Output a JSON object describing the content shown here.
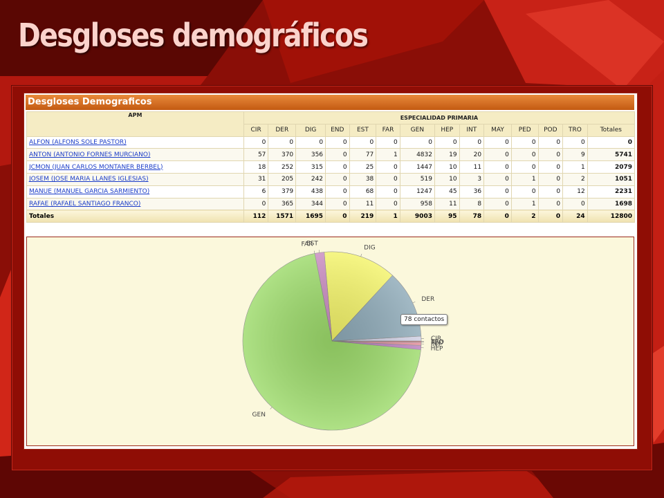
{
  "slide": {
    "title": "Desgloses demográficos"
  },
  "panel": {
    "title": "Desgloses Demograficos"
  },
  "table": {
    "row_header": "APM",
    "group_header": "ESPECIALIDAD PRIMARIA",
    "columns": [
      "CIR",
      "DER",
      "DIG",
      "END",
      "EST",
      "FAR",
      "GEN",
      "HEP",
      "INT",
      "MAY",
      "PED",
      "POD",
      "TRO",
      "Totales"
    ],
    "rows": [
      {
        "name": "ALFON (ALFONS SOLE PASTOR)",
        "values": [
          "0",
          "0",
          "0",
          "0",
          "0",
          "0",
          "0",
          "0",
          "0",
          "0",
          "0",
          "0",
          "0",
          "0"
        ]
      },
      {
        "name": "ANTON (ANTONIO FORNES MURCIANO)",
        "values": [
          "57",
          "370",
          "356",
          "0",
          "77",
          "1",
          "4832",
          "19",
          "20",
          "0",
          "0",
          "0",
          "9",
          "5741"
        ]
      },
      {
        "name": "JCMON (JUAN CARLOS MONTANER BERBEL)",
        "values": [
          "18",
          "252",
          "315",
          "0",
          "25",
          "0",
          "1447",
          "10",
          "11",
          "0",
          "0",
          "0",
          "1",
          "2079"
        ]
      },
      {
        "name": "JOSEM (JOSE MARIA LLANES IGLESIAS)",
        "values": [
          "31",
          "205",
          "242",
          "0",
          "38",
          "0",
          "519",
          "10",
          "3",
          "0",
          "1",
          "0",
          "2",
          "1051"
        ]
      },
      {
        "name": "MANUE (MANUEL GARCIA SARMIENTO)",
        "values": [
          "6",
          "379",
          "438",
          "0",
          "68",
          "0",
          "1247",
          "45",
          "36",
          "0",
          "0",
          "0",
          "12",
          "2231"
        ]
      },
      {
        "name": "RAFAE (RAFAEL SANTIAGO FRANCO)",
        "values": [
          "0",
          "365",
          "344",
          "0",
          "11",
          "0",
          "958",
          "11",
          "8",
          "0",
          "1",
          "0",
          "0",
          "1698"
        ]
      }
    ],
    "totals": {
      "label": "Totales",
      "values": [
        "112",
        "1571",
        "1695",
        "0",
        "219",
        "1",
        "9003",
        "95",
        "78",
        "0",
        "2",
        "0",
        "24",
        "12800"
      ]
    }
  },
  "chart_data": {
    "type": "pie",
    "slices": [
      {
        "label": "CIR",
        "value": 112,
        "color": "#cfcfe3"
      },
      {
        "label": "DER",
        "value": 1571,
        "color": "#8eaab8"
      },
      {
        "label": "DIG",
        "value": 1695,
        "color": "#f4f46a"
      },
      {
        "label": "END",
        "value": 0,
        "color": "#c8c8c8"
      },
      {
        "label": "EST",
        "value": 219,
        "color": "#c98bc0"
      },
      {
        "label": "FAR",
        "value": 1,
        "color": "#e0a0d0"
      },
      {
        "label": "GEN",
        "value": 9003,
        "color": "#9ddb6b"
      },
      {
        "label": "HEP",
        "value": 95,
        "color": "#bb7fbf"
      },
      {
        "label": "INT",
        "value": 78,
        "color": "#e08c9a"
      },
      {
        "label": "MAY",
        "value": 0,
        "color": "#c8c8c8"
      },
      {
        "label": "PED",
        "value": 2,
        "color": "#d07070"
      },
      {
        "label": "POD",
        "value": 0,
        "color": "#c8c8c8"
      },
      {
        "label": "TRO",
        "value": 24,
        "color": "#c05a5a"
      }
    ],
    "tooltip": "78 contactos"
  },
  "colors": {
    "accent": "#c35a12",
    "link": "#1a3cc8",
    "slide_bg": "#b1140a"
  }
}
